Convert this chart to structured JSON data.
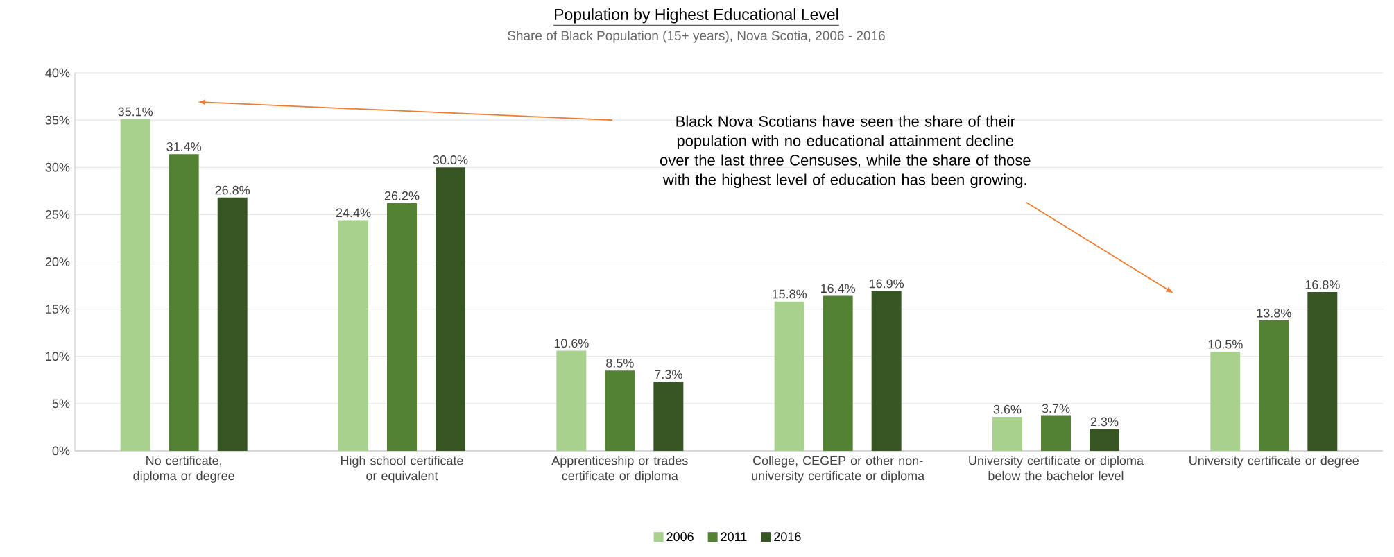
{
  "chart_data": {
    "type": "bar",
    "title": "Population by Highest Educational Level",
    "subtitle": "Share of Black Population (15+ years), Nova Scotia, 2006 - 2016",
    "categories": [
      "No certificate, diploma or degree",
      "High school certificate or equivalent",
      "Apprenticeship or trades certificate or diploma",
      "College, CEGEP or other non-university certificate or diploma",
      "University certificate or diploma below the bachelor level",
      "University certificate or degree"
    ],
    "series": [
      {
        "name": "2006",
        "color": "#a9d18e",
        "values": [
          35.1,
          24.4,
          10.6,
          15.8,
          3.6,
          10.5
        ],
        "value_labels": [
          "35.1%",
          "24.4%",
          "10.6%",
          "15.8%",
          "3.6%",
          "10.5%"
        ]
      },
      {
        "name": "2011",
        "color": "#548235",
        "values": [
          31.4,
          26.2,
          8.5,
          16.4,
          3.7,
          13.8
        ],
        "value_labels": [
          "31.4%",
          "26.2%",
          "8.5%",
          "16.4%",
          "3.7%",
          "13.8%"
        ]
      },
      {
        "name": "2016",
        "color": "#375623",
        "values": [
          26.8,
          30.0,
          7.3,
          16.9,
          2.3,
          16.8
        ],
        "value_labels": [
          "26.8%",
          "30.0%",
          "7.3%",
          "16.9%",
          "2.3%",
          "16.8%"
        ]
      }
    ],
    "ylim": [
      0,
      40
    ],
    "yticks": [
      {
        "value": 0,
        "label": "0%"
      },
      {
        "value": 5,
        "label": "5%"
      },
      {
        "value": 10,
        "label": "10%"
      },
      {
        "value": 15,
        "label": "15%"
      },
      {
        "value": 20,
        "label": "20%"
      },
      {
        "value": 25,
        "label": "25%"
      },
      {
        "value": 30,
        "label": "30%"
      },
      {
        "value": 35,
        "label": "35%"
      },
      {
        "value": 40,
        "label": "40%"
      }
    ],
    "grid": "y",
    "legend": "bottom",
    "annotations": [
      "Black Nova Scotians have seen the share of their population with no educational attainment decline over the last three Censuses, while the share of those with the highest level of education has been growing."
    ]
  }
}
